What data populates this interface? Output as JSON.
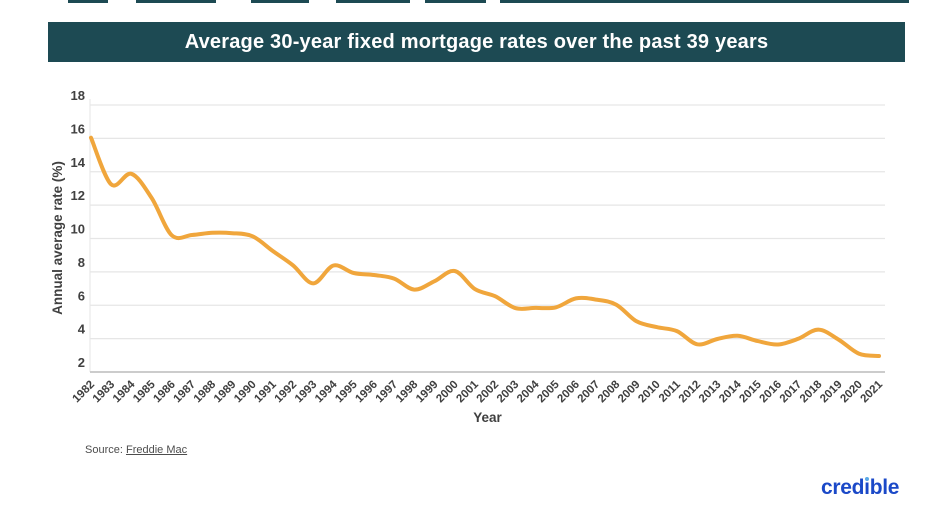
{
  "header": {
    "title": "Average 30-year fixed mortgage rates over the past 39 years",
    "bg_color": "#1d4a53",
    "text_color": "#ffffff"
  },
  "decor": {
    "top_strip_color": "#1d4a53"
  },
  "chart_data": {
    "type": "line",
    "title": "Average 30-year fixed mortgage rates over the past 39 years",
    "xlabel": "Year",
    "ylabel": "Annual average rate (%)",
    "x": [
      1982,
      1983,
      1984,
      1985,
      1986,
      1987,
      1988,
      1989,
      1990,
      1991,
      1992,
      1993,
      1994,
      1995,
      1996,
      1997,
      1998,
      1999,
      2000,
      2001,
      2002,
      2003,
      2004,
      2005,
      2006,
      2007,
      2008,
      2009,
      2010,
      2011,
      2012,
      2013,
      2014,
      2015,
      2016,
      2017,
      2018,
      2019,
      2020,
      2021
    ],
    "series": [
      {
        "name": "Average 30-year fixed mortgage rate",
        "color": "#f0a63c",
        "values": [
          16.04,
          13.24,
          13.88,
          12.43,
          10.19,
          10.21,
          10.34,
          10.32,
          10.13,
          9.25,
          8.39,
          7.31,
          8.38,
          7.93,
          7.81,
          7.6,
          6.94,
          7.44,
          8.05,
          6.97,
          6.54,
          5.83,
          5.84,
          5.87,
          6.41,
          6.34,
          6.03,
          5.04,
          4.69,
          4.45,
          3.66,
          3.98,
          4.17,
          3.85,
          3.65,
          3.99,
          4.54,
          3.94,
          3.1,
          2.96
        ]
      }
    ],
    "ylim": [
      2,
      18
    ],
    "yticks": [
      2,
      4,
      6,
      8,
      10,
      12,
      14,
      16,
      18
    ],
    "grid": true,
    "legend_position": "none",
    "grid_color": "#e6e6e6",
    "axis_color": "#cccccc",
    "tick_text_color": "#404040"
  },
  "source": {
    "label": "Source:",
    "link_text": "Freddie Mac"
  },
  "logo": {
    "text": "credible",
    "color": "#1b49c8",
    "dot_color": "#5aa9e6"
  }
}
